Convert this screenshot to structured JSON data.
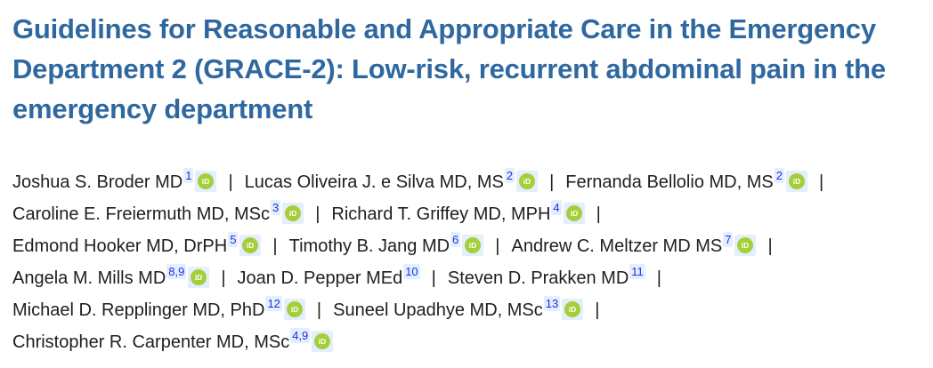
{
  "article": {
    "title": "Guidelines for Reasonable and Appropriate Care in the Emergency Department 2 (GRACE-2): Low-risk, recurrent abdominal pain in the emergency department"
  },
  "separator": "|",
  "orcid_icon": {
    "name": "orcid-icon",
    "color": "#a6ce39",
    "text": "iD"
  },
  "authors": [
    {
      "name": "Joshua S. Broder MD",
      "aff": "1"
    },
    {
      "name": "Lucas Oliveira J. e Silva MD, MS",
      "aff": "2"
    },
    {
      "name": "Fernanda Bellolio MD, MS",
      "aff": "2"
    },
    {
      "name": "Caroline E. Freiermuth MD, MSc",
      "aff": "3"
    },
    {
      "name": "Richard T. Griffey MD, MPH",
      "aff": "4"
    },
    {
      "name": "Edmond Hooker MD, DrPH",
      "aff": "5"
    },
    {
      "name": "Timothy B. Jang MD",
      "aff": "6"
    },
    {
      "name": "Andrew C. Meltzer MD MS",
      "aff": "7"
    },
    {
      "name": "Angela M. Mills MD",
      "aff": "8,9"
    },
    {
      "name": "Joan D. Pepper MEd",
      "aff": "10"
    },
    {
      "name": "Steven D. Prakken MD",
      "aff": "11"
    },
    {
      "name": "Michael D. Repplinger MD, PhD",
      "aff": "12"
    },
    {
      "name": "Suneel Upadhye MD, MSc",
      "aff": "13"
    },
    {
      "name": "Christopher R. Carpenter MD, MSc",
      "aff": "4,9"
    }
  ]
}
